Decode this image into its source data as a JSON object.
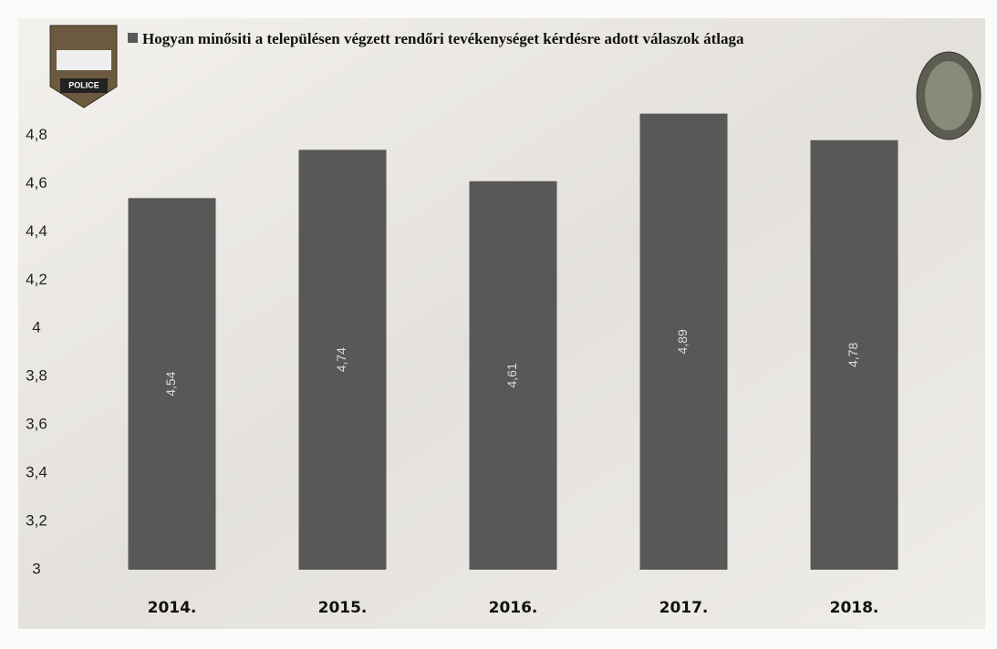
{
  "chart_data": {
    "type": "bar",
    "logo_text": "POLICE",
    "categories": [
      "2014.",
      "2015.",
      "2016.",
      "2017.",
      "2018."
    ],
    "series": [
      {
        "name": "Hogyan minősiti a településen végzett rendőri tevékenységet kérdésre adott válaszok átlaga",
        "color": "#585858",
        "values": [
          4.54,
          4.74,
          4.61,
          4.89,
          4.78
        ],
        "value_labels": [
          "4,54",
          "4,74",
          "4,61",
          "4,89",
          "4,78"
        ]
      }
    ],
    "ylim": [
      3,
      4.9
    ],
    "yticks": [
      3,
      {
        "value": 3.2,
        "label": "3,2"
      },
      {
        "value": 3.4,
        "label": "3,4"
      },
      {
        "value": 3.6,
        "label": "3,6"
      },
      {
        "value": 3.8,
        "label": "3,8"
      },
      4,
      {
        "value": 4.2,
        "label": "4,2"
      },
      {
        "value": 4.4,
        "label": "4,4"
      },
      {
        "value": 4.6,
        "label": "4,6"
      },
      {
        "value": 4.8,
        "label": "4,8"
      }
    ],
    "grid": false
  }
}
